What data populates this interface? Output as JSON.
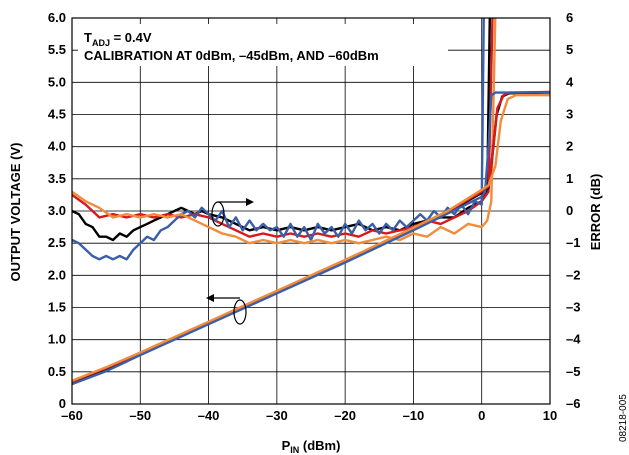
{
  "chart_data": {
    "type": "line",
    "xlabel": "P",
    "xlabel_sub": "IN",
    "xlabel_unit": " (dBm)",
    "ylabel": "OUTPUT VOLTAGE (V)",
    "y2label": "ERROR (dB)",
    "xlim": [
      -60,
      10
    ],
    "ylim": [
      0,
      6
    ],
    "y2lim": [
      -6,
      6
    ],
    "x_ticks": [
      "–60",
      "–50",
      "–40",
      "–30",
      "–20",
      "–10",
      "0",
      "10"
    ],
    "y_ticks": [
      "0",
      "0.5",
      "1.0",
      "1.5",
      "2.0",
      "2.5",
      "3.0",
      "3.5",
      "4.0",
      "4.5",
      "5.0",
      "5.5",
      "6.0"
    ],
    "y2_ticks": [
      "–6",
      "–5",
      "–4",
      "–3",
      "–2",
      "–1",
      "0",
      "1",
      "2",
      "3",
      "4",
      "5",
      "6"
    ],
    "grid": true,
    "annotation_line1_main": "T",
    "annotation_line1_sub": "ADJ",
    "annotation_line1_rest": " = 0.4V",
    "annotation_line2": "CALIBRATION AT 0dBm, –45dBm, AND –60dBm",
    "figure_id": "08218-005",
    "colors": [
      "#000000",
      "#d7191c",
      "#3a5fa8",
      "#f08c3c"
    ],
    "voltage_series": [
      {
        "color": "#000000",
        "points": [
          [
            -60,
            0.34
          ],
          [
            -55,
            0.55
          ],
          [
            -50,
            0.78
          ],
          [
            -45,
            1.02
          ],
          [
            -40,
            1.26
          ],
          [
            -35,
            1.5
          ],
          [
            -30,
            1.74
          ],
          [
            -25,
            1.98
          ],
          [
            -20,
            2.22
          ],
          [
            -15,
            2.47
          ],
          [
            -10,
            2.72
          ],
          [
            -5,
            2.98
          ],
          [
            0,
            3.28
          ],
          [
            1,
            3.36
          ],
          [
            1.5,
            3.8
          ],
          [
            2.2,
            4.5
          ],
          [
            3.0,
            4.78
          ],
          [
            4,
            4.83
          ],
          [
            10,
            4.84
          ]
        ]
      },
      {
        "color": "#d7191c",
        "points": [
          [
            -60,
            0.35
          ],
          [
            -55,
            0.56
          ],
          [
            -50,
            0.79
          ],
          [
            -45,
            1.03
          ],
          [
            -40,
            1.27
          ],
          [
            -35,
            1.51
          ],
          [
            -30,
            1.75
          ],
          [
            -25,
            1.99
          ],
          [
            -20,
            2.23
          ],
          [
            -15,
            2.48
          ],
          [
            -10,
            2.73
          ],
          [
            -5,
            2.99
          ],
          [
            0,
            3.3
          ],
          [
            1,
            3.38
          ],
          [
            1.6,
            3.9
          ],
          [
            2.3,
            4.6
          ],
          [
            3.2,
            4.8
          ],
          [
            4,
            4.84
          ],
          [
            10,
            4.85
          ]
        ]
      },
      {
        "color": "#3a5fa8",
        "points": [
          [
            -60,
            0.31
          ],
          [
            -55,
            0.51
          ],
          [
            -50,
            0.76
          ],
          [
            -45,
            1.0
          ],
          [
            -40,
            1.24
          ],
          [
            -35,
            1.48
          ],
          [
            -30,
            1.72
          ],
          [
            -25,
            1.96
          ],
          [
            -20,
            2.2
          ],
          [
            -15,
            2.45
          ],
          [
            -10,
            2.7
          ],
          [
            -5,
            2.96
          ],
          [
            0,
            3.22
          ],
          [
            0.5,
            3.3
          ],
          [
            1.0,
            4.0
          ],
          [
            1.4,
            4.8
          ],
          [
            2.0,
            4.84
          ],
          [
            10,
            4.84
          ]
        ]
      },
      {
        "color": "#f08c3c",
        "points": [
          [
            -60,
            0.36
          ],
          [
            -55,
            0.57
          ],
          [
            -50,
            0.8
          ],
          [
            -45,
            1.04
          ],
          [
            -40,
            1.28
          ],
          [
            -35,
            1.52
          ],
          [
            -30,
            1.76
          ],
          [
            -25,
            2.0
          ],
          [
            -20,
            2.24
          ],
          [
            -15,
            2.49
          ],
          [
            -10,
            2.74
          ],
          [
            -5,
            3.0
          ],
          [
            0,
            3.33
          ],
          [
            1,
            3.4
          ],
          [
            2.0,
            3.7
          ],
          [
            2.8,
            4.4
          ],
          [
            3.8,
            4.74
          ],
          [
            5,
            4.8
          ],
          [
            10,
            4.8
          ]
        ]
      }
    ],
    "error_series": [
      {
        "color": "#000000",
        "points": [
          [
            -60,
            0
          ],
          [
            -59,
            -0.1
          ],
          [
            -58,
            -0.4
          ],
          [
            -57,
            -0.5
          ],
          [
            -56,
            -0.8
          ],
          [
            -55,
            -0.8
          ],
          [
            -54,
            -0.9
          ],
          [
            -53,
            -0.7
          ],
          [
            -52,
            -0.8
          ],
          [
            -51,
            -0.6
          ],
          [
            -50,
            -0.5
          ],
          [
            -49,
            -0.4
          ],
          [
            -48,
            -0.3
          ],
          [
            -47,
            -0.2
          ],
          [
            -46,
            -0.1
          ],
          [
            -45,
            0
          ],
          [
            -44,
            0.1
          ],
          [
            -43,
            0
          ],
          [
            -42,
            -0.1
          ],
          [
            -41,
            0
          ],
          [
            -40,
            -0.1
          ],
          [
            -38,
            -0.2
          ],
          [
            -36,
            -0.4
          ],
          [
            -34,
            -0.6
          ],
          [
            -32,
            -0.5
          ],
          [
            -30,
            -0.6
          ],
          [
            -28,
            -0.5
          ],
          [
            -26,
            -0.6
          ],
          [
            -24,
            -0.5
          ],
          [
            -22,
            -0.6
          ],
          [
            -20,
            -0.5
          ],
          [
            -18,
            -0.4
          ],
          [
            -16,
            -0.6
          ],
          [
            -14,
            -0.5
          ],
          [
            -12,
            -0.6
          ],
          [
            -10,
            -0.4
          ],
          [
            -8,
            -0.3
          ],
          [
            -6,
            -0.2
          ],
          [
            -4,
            -0.2
          ],
          [
            -2,
            0.1
          ],
          [
            0,
            0.3
          ],
          [
            0.8,
            0.6
          ],
          [
            1.2,
            6.2
          ]
        ]
      },
      {
        "color": "#d7191c",
        "points": [
          [
            -60,
            0.5
          ],
          [
            -58,
            0.2
          ],
          [
            -56,
            -0.2
          ],
          [
            -54,
            -0.1
          ],
          [
            -52,
            -0.2
          ],
          [
            -50,
            -0.1
          ],
          [
            -48,
            -0.2
          ],
          [
            -46,
            -0.1
          ],
          [
            -44,
            -0.2
          ],
          [
            -42,
            -0.1
          ],
          [
            -40,
            -0.2
          ],
          [
            -38,
            -0.4
          ],
          [
            -36,
            -0.6
          ],
          [
            -34,
            -0.8
          ],
          [
            -32,
            -0.7
          ],
          [
            -30,
            -0.8
          ],
          [
            -28,
            -0.7
          ],
          [
            -26,
            -0.8
          ],
          [
            -24,
            -0.7
          ],
          [
            -22,
            -0.8
          ],
          [
            -20,
            -0.7
          ],
          [
            -18,
            -0.8
          ],
          [
            -16,
            -0.6
          ],
          [
            -14,
            -0.7
          ],
          [
            -12,
            -0.6
          ],
          [
            -10,
            -0.5
          ],
          [
            -8,
            -0.3
          ],
          [
            -6,
            -0.4
          ],
          [
            -4,
            -0.2
          ],
          [
            -2,
            0
          ],
          [
            0,
            0.3
          ],
          [
            1.0,
            0.6
          ],
          [
            1.6,
            6.2
          ]
        ]
      },
      {
        "color": "#3a5fa8",
        "points": [
          [
            -60,
            -0.9
          ],
          [
            -59,
            -1.0
          ],
          [
            -58,
            -1.2
          ],
          [
            -57,
            -1.4
          ],
          [
            -56,
            -1.5
          ],
          [
            -55,
            -1.4
          ],
          [
            -54,
            -1.5
          ],
          [
            -53,
            -1.4
          ],
          [
            -52,
            -1.5
          ],
          [
            -51,
            -1.2
          ],
          [
            -50,
            -1.0
          ],
          [
            -49,
            -0.8
          ],
          [
            -48,
            -0.9
          ],
          [
            -47,
            -0.6
          ],
          [
            -46,
            -0.5
          ],
          [
            -45,
            -0.3
          ],
          [
            -44,
            -0.1
          ],
          [
            -43,
            0
          ],
          [
            -42,
            -0.2
          ],
          [
            -41,
            0.1
          ],
          [
            -40,
            -0.1
          ],
          [
            -39,
            -0.3
          ],
          [
            -38,
            0
          ],
          [
            -37,
            -0.5
          ],
          [
            -36,
            -0.2
          ],
          [
            -35,
            -0.6
          ],
          [
            -34,
            -0.3
          ],
          [
            -33,
            -0.6
          ],
          [
            -32,
            -0.4
          ],
          [
            -31,
            -0.6
          ],
          [
            -30,
            -0.5
          ],
          [
            -29,
            -0.8
          ],
          [
            -28,
            -0.4
          ],
          [
            -27,
            -0.8
          ],
          [
            -26,
            -0.5
          ],
          [
            -25,
            -0.9
          ],
          [
            -24,
            -0.4
          ],
          [
            -23,
            -0.7
          ],
          [
            -22,
            -0.5
          ],
          [
            -21,
            -0.8
          ],
          [
            -20,
            -0.4
          ],
          [
            -19,
            -0.7
          ],
          [
            -18,
            -0.3
          ],
          [
            -17,
            -0.6
          ],
          [
            -16,
            -0.4
          ],
          [
            -15,
            -0.7
          ],
          [
            -14,
            -0.4
          ],
          [
            -13,
            -0.6
          ],
          [
            -12,
            -0.3
          ],
          [
            -11,
            -0.5
          ],
          [
            -10,
            -0.3
          ],
          [
            -9,
            -0.1
          ],
          [
            -8,
            -0.3
          ],
          [
            -7,
            0
          ],
          [
            -6,
            -0.2
          ],
          [
            -5,
            0.1
          ],
          [
            -4,
            -0.1
          ],
          [
            -3,
            0.2
          ],
          [
            -2,
            -0.1
          ],
          [
            -1,
            0.3
          ],
          [
            0,
            0.2
          ],
          [
            0.3,
            6.2
          ]
        ]
      },
      {
        "color": "#f08c3c",
        "points": [
          [
            -60,
            0.6
          ],
          [
            -58,
            0.3
          ],
          [
            -56,
            0.1
          ],
          [
            -54,
            -0.2
          ],
          [
            -52,
            -0.1
          ],
          [
            -50,
            -0.2
          ],
          [
            -48,
            -0.1
          ],
          [
            -46,
            -0.2
          ],
          [
            -44,
            -0.1
          ],
          [
            -42,
            -0.3
          ],
          [
            -40,
            -0.5
          ],
          [
            -38,
            -0.7
          ],
          [
            -36,
            -0.8
          ],
          [
            -34,
            -1.0
          ],
          [
            -32,
            -0.9
          ],
          [
            -30,
            -1.0
          ],
          [
            -28,
            -0.9
          ],
          [
            -26,
            -1.0
          ],
          [
            -24,
            -0.9
          ],
          [
            -22,
            -1.0
          ],
          [
            -20,
            -0.9
          ],
          [
            -18,
            -1.0
          ],
          [
            -16,
            -0.9
          ],
          [
            -14,
            -0.8
          ],
          [
            -12,
            -0.9
          ],
          [
            -10,
            -0.7
          ],
          [
            -8,
            -0.8
          ],
          [
            -6,
            -0.5
          ],
          [
            -4,
            -0.7
          ],
          [
            -2,
            -0.4
          ],
          [
            0,
            -0.5
          ],
          [
            0.8,
            -0.3
          ],
          [
            1.4,
            0.3
          ],
          [
            2.0,
            6.2
          ]
        ]
      }
    ]
  }
}
